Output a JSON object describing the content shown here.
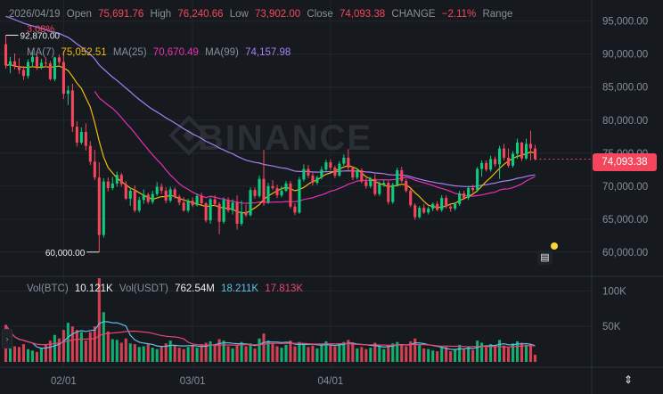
{
  "header": {
    "date": "2026/04/19",
    "open_label": "Open",
    "open": "75,691.76",
    "high_label": "High",
    "high": "76,240.66",
    "low_label": "Low",
    "low": "73,902.00",
    "close_label": "Close",
    "close": "74,093.38",
    "change_label": "CHANGE",
    "change": "−2.11%",
    "range_label": "Range",
    "sub_change": "3.08%"
  },
  "ma": {
    "ma7_label": "MA(7)",
    "ma7_value": "75,052.51",
    "ma7_color": "#f0b90b",
    "ma25_label": "MA(25)",
    "ma25_value": "70,670.49",
    "ma25_color": "#e62fb5",
    "ma99_label": "MA(99)",
    "ma99_value": "74,157.98",
    "ma99_color": "#a77ff5"
  },
  "volume_header": {
    "btc_label": "Vol(BTC)",
    "btc_value": "10.121K",
    "usdt_label": "Vol(USDT)",
    "usdt_value": "762.54M",
    "ma1_value": "18.211K",
    "ma1_color": "#5bc2e7",
    "ma2_value": "17.813K",
    "ma2_color": "#e84571"
  },
  "current_price": "74,093.38",
  "watermark": "BINANCE",
  "colors": {
    "up": "#0ecb81",
    "down": "#f6465d",
    "background": "#161a1e",
    "grid": "#22272e"
  },
  "chart_data": {
    "type": "candlestick",
    "x_tick_labels": [
      "02/01",
      "03/01",
      "04/01"
    ],
    "price_axis_ticks": [
      "95,000.00",
      "90,000.00",
      "85,000.00",
      "80,000.00",
      "75,000.00",
      "70,000.00",
      "65,000.00",
      "60,000.00"
    ],
    "price_range": [
      57000,
      97800
    ],
    "volume_axis_ticks": [
      "100K",
      "50K"
    ],
    "volume_range": [
      0,
      118000
    ],
    "high_marker": "92,870.00",
    "low_marker": "60,000.00",
    "candles": [
      [
        91500,
        92870,
        87800,
        88300,
        52000
      ],
      [
        88300,
        89600,
        87100,
        88900,
        32000
      ],
      [
        88900,
        90100,
        87700,
        88200,
        22000
      ],
      [
        88200,
        89400,
        87000,
        87600,
        21000
      ],
      [
        87600,
        88200,
        86100,
        86700,
        25000
      ],
      [
        86700,
        89200,
        86300,
        88800,
        18000
      ],
      [
        88800,
        90500,
        88200,
        89600,
        16000
      ],
      [
        89600,
        90000,
        87600,
        88100,
        14000
      ],
      [
        88100,
        89300,
        87700,
        88700,
        19000
      ],
      [
        88700,
        89500,
        88000,
        88600,
        24000
      ],
      [
        88600,
        89000,
        86000,
        86200,
        30000
      ],
      [
        86200,
        89600,
        85900,
        89500,
        38000
      ],
      [
        89500,
        89900,
        88400,
        88800,
        33000
      ],
      [
        88800,
        90500,
        83200,
        84000,
        45000
      ],
      [
        84000,
        85200,
        82300,
        84500,
        55000
      ],
      [
        84500,
        85500,
        78200,
        79000,
        50000
      ],
      [
        79000,
        79800,
        76000,
        76600,
        45000
      ],
      [
        76600,
        78900,
        76300,
        78200,
        42000
      ],
      [
        78200,
        79500,
        75400,
        76100,
        30000
      ],
      [
        76100,
        76800,
        73200,
        73700,
        42000
      ],
      [
        73700,
        75500,
        70900,
        71300,
        50000
      ],
      [
        71300,
        73600,
        60000,
        62600,
        118000
      ],
      [
        62600,
        71200,
        62200,
        70700,
        70000
      ],
      [
        70700,
        71300,
        69200,
        69700,
        43000
      ],
      [
        69700,
        71400,
        69400,
        70400,
        32000
      ],
      [
        70400,
        72200,
        69900,
        71700,
        31000
      ],
      [
        71700,
        72000,
        69900,
        70300,
        27000
      ],
      [
        70300,
        70800,
        67900,
        68100,
        33000
      ],
      [
        68100,
        69700,
        67000,
        69300,
        26000
      ],
      [
        69300,
        70100,
        66000,
        66300,
        25000
      ],
      [
        66300,
        68400,
        66000,
        67900,
        21000
      ],
      [
        67900,
        69500,
        67300,
        68700,
        22000
      ],
      [
        68700,
        69000,
        67300,
        67600,
        25000
      ],
      [
        67600,
        69300,
        67300,
        68800,
        20000
      ],
      [
        68800,
        70600,
        68500,
        69900,
        18000
      ],
      [
        69900,
        70400,
        68800,
        69300,
        22000
      ],
      [
        69300,
        69800,
        67400,
        67800,
        26000
      ],
      [
        67800,
        69900,
        67500,
        69500,
        30000
      ],
      [
        69500,
        69800,
        68100,
        68400,
        23000
      ],
      [
        68400,
        68700,
        67100,
        67500,
        20000
      ],
      [
        67500,
        68300,
        66100,
        66300,
        18000
      ],
      [
        66300,
        68100,
        66000,
        67800,
        21000
      ],
      [
        67800,
        68300,
        66800,
        67100,
        24000
      ],
      [
        67100,
        68800,
        66900,
        68500,
        20000
      ],
      [
        68500,
        69000,
        67200,
        67400,
        25000
      ],
      [
        67400,
        67600,
        64500,
        64800,
        27000
      ],
      [
        64800,
        68300,
        64300,
        68000,
        29000
      ],
      [
        68000,
        68600,
        66900,
        67300,
        24000
      ],
      [
        67300,
        67600,
        62700,
        64600,
        32000
      ],
      [
        64600,
        68300,
        64300,
        67900,
        30000
      ],
      [
        67900,
        68300,
        66000,
        66300,
        22000
      ],
      [
        66300,
        68000,
        65700,
        67500,
        19000
      ],
      [
        67500,
        68600,
        63400,
        64300,
        24000
      ],
      [
        64300,
        67800,
        64000,
        66100,
        28000
      ],
      [
        66100,
        67200,
        65300,
        65600,
        22000
      ],
      [
        65600,
        69800,
        65400,
        69400,
        26000
      ],
      [
        69400,
        69800,
        68100,
        68500,
        19000
      ],
      [
        68500,
        71600,
        68200,
        71100,
        33000
      ],
      [
        71100,
        75500,
        67000,
        67600,
        40000
      ],
      [
        67600,
        70500,
        67300,
        70000,
        30000
      ],
      [
        70000,
        70900,
        69400,
        69700,
        26000
      ],
      [
        69700,
        70200,
        68200,
        68600,
        22000
      ],
      [
        68600,
        70000,
        68300,
        69300,
        20000
      ],
      [
        69300,
        70800,
        69100,
        70400,
        24000
      ],
      [
        70400,
        70800,
        66600,
        66900,
        30000
      ],
      [
        66900,
        67400,
        65600,
        66000,
        22000
      ],
      [
        66000,
        71400,
        65800,
        71000,
        28000
      ],
      [
        71000,
        73300,
        70700,
        72600,
        26000
      ],
      [
        72600,
        73200,
        71200,
        71600,
        21000
      ],
      [
        71600,
        72100,
        70100,
        70500,
        23000
      ],
      [
        70500,
        71600,
        70200,
        71300,
        19000
      ],
      [
        71300,
        73000,
        71000,
        72500,
        25000
      ],
      [
        72500,
        74000,
        72300,
        73600,
        29000
      ],
      [
        73600,
        74000,
        72400,
        72800,
        24000
      ],
      [
        72800,
        73100,
        71200,
        71600,
        22000
      ],
      [
        71600,
        73800,
        71400,
        73400,
        26000
      ],
      [
        73400,
        74800,
        73100,
        74300,
        28000
      ],
      [
        74300,
        75600,
        72200,
        72800,
        31000
      ],
      [
        72800,
        73000,
        70900,
        71300,
        26000
      ],
      [
        71300,
        72700,
        71000,
        72400,
        19000
      ],
      [
        72400,
        72700,
        70400,
        70700,
        21000
      ],
      [
        70700,
        71200,
        69600,
        70000,
        18000
      ],
      [
        70000,
        71400,
        69700,
        71100,
        20000
      ],
      [
        71100,
        71800,
        68500,
        68800,
        27000
      ],
      [
        68800,
        70700,
        68500,
        70300,
        23000
      ],
      [
        70300,
        70900,
        69900,
        70500,
        18000
      ],
      [
        70500,
        70800,
        67200,
        67600,
        24000
      ],
      [
        67600,
        70500,
        67300,
        70200,
        26000
      ],
      [
        70200,
        72800,
        69900,
        72400,
        28000
      ],
      [
        72400,
        72900,
        70500,
        70800,
        25000
      ],
      [
        70800,
        71100,
        69000,
        69300,
        22000
      ],
      [
        69300,
        69600,
        66800,
        67100,
        29000
      ],
      [
        67100,
        67400,
        64900,
        65300,
        33000
      ],
      [
        65300,
        67000,
        65100,
        66700,
        24000
      ],
      [
        66700,
        67300,
        65800,
        66000,
        19000
      ],
      [
        66000,
        66900,
        65700,
        66600,
        18000
      ],
      [
        66600,
        67500,
        66200,
        67300,
        16000
      ],
      [
        67300,
        67700,
        66200,
        66400,
        15000
      ],
      [
        66400,
        68600,
        66100,
        68200,
        20000
      ],
      [
        68200,
        68600,
        66600,
        66900,
        21000
      ],
      [
        66900,
        67300,
        66100,
        66600,
        15000
      ],
      [
        66600,
        67500,
        66300,
        67300,
        17000
      ],
      [
        67300,
        69300,
        67000,
        68900,
        24000
      ],
      [
        68900,
        69300,
        67900,
        68200,
        18000
      ],
      [
        68200,
        70000,
        67900,
        69700,
        21000
      ],
      [
        69700,
        70200,
        69000,
        69400,
        17000
      ],
      [
        69400,
        72900,
        69100,
        72600,
        30000
      ],
      [
        72600,
        73900,
        71400,
        73500,
        27000
      ],
      [
        73500,
        73900,
        72200,
        72500,
        21000
      ],
      [
        72500,
        74600,
        72200,
        74100,
        25000
      ],
      [
        74100,
        74500,
        72900,
        73300,
        22000
      ],
      [
        73300,
        76100,
        71100,
        75700,
        31000
      ],
      [
        75700,
        76400,
        73900,
        74300,
        23000
      ],
      [
        74300,
        75700,
        72800,
        73100,
        20000
      ],
      [
        73100,
        75300,
        72800,
        74900,
        26000
      ],
      [
        74900,
        77200,
        74100,
        76600,
        29000
      ],
      [
        76600,
        76700,
        73800,
        74200,
        27000
      ],
      [
        74200,
        77200,
        74000,
        76400,
        24000
      ],
      [
        76400,
        78400,
        73900,
        75700,
        25000
      ],
      [
        75700,
        76240,
        73902,
        74093,
        10121
      ]
    ],
    "ma7": [
      88300,
      88400,
      88200,
      88100,
      88000,
      88000,
      88100,
      88000,
      88000,
      88100,
      88000,
      88100,
      88200,
      87900,
      87500,
      86600,
      85600,
      84800,
      83400,
      82000,
      79600,
      76800,
      74400,
      72800,
      72000,
      71200,
      70700,
      70200,
      69700,
      69400,
      69000,
      68600,
      68300,
      68000,
      68200,
      68400,
      68400,
      68600,
      68400,
      68100,
      67900,
      67700,
      67500,
      67300,
      67100,
      66900,
      67000,
      67100,
      66800,
      66700,
      66600,
      66500,
      66100,
      66000,
      65900,
      66300,
      66700,
      67200,
      68000,
      68500,
      68900,
      69300,
      69600,
      69800,
      69600,
      69300,
      69500,
      69800,
      70300,
      70700,
      70900,
      71400,
      71800,
      72000,
      72300,
      72600,
      72900,
      73100,
      72900,
      72600,
      72000,
      71400,
      71100,
      70700,
      70400,
      70200,
      69900,
      70000,
      70100,
      70300,
      70200,
      69700,
      69000,
      68400,
      67700,
      67100,
      66900,
      66800,
      66800,
      67000,
      67300,
      67400,
      67800,
      68100,
      68400,
      68800,
      69300,
      70000,
      70700,
      71300,
      72000,
      72700,
      73300,
      73800,
      74200,
      74500,
      74700,
      74900,
      75200,
      75000
    ]
  }
}
